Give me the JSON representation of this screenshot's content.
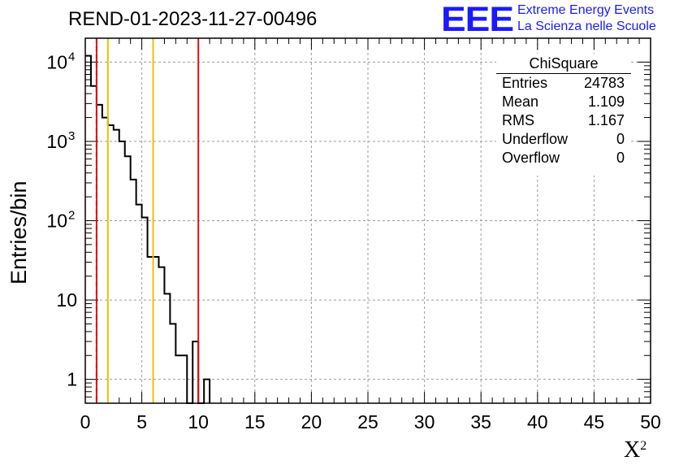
{
  "title": "REND-01-2023-11-27-00496",
  "logo": {
    "mark": "EEE",
    "line1": "Extreme Energy Events",
    "line2": "La Scienza nelle Scuole"
  },
  "colors": {
    "histogram": "#000000",
    "grid": "#9a9a9a",
    "mean_line_dashed": "#000000",
    "cut_line_red": "#dd1111",
    "cut_line_yellow": "#f0c000"
  },
  "stats": {
    "title": "ChiSquare",
    "rows": [
      {
        "label": "Entries",
        "value": "24783"
      },
      {
        "label": "Mean",
        "value": "1.109"
      },
      {
        "label": "RMS",
        "value": "1.167"
      },
      {
        "label": "Underflow",
        "value": "0"
      },
      {
        "label": "Overflow",
        "value": "0"
      }
    ]
  },
  "chart_data": {
    "type": "bar",
    "title": "REND-01-2023-11-27-00496",
    "xlabel": "X",
    "xlabel_superscript": "2",
    "ylabel": "Entries/bin",
    "xlim": [
      0,
      50
    ],
    "ylim": [
      0.5,
      20000
    ],
    "yscale": "log",
    "grid": true,
    "x_ticks": [
      "0",
      "5",
      "10",
      "15",
      "20",
      "25",
      "30",
      "35",
      "40",
      "45",
      "50"
    ],
    "y_ticks": [
      {
        "value": 1,
        "label": "1"
      },
      {
        "value": 10,
        "label": "10"
      },
      {
        "value": 100,
        "label": "10",
        "exp": "2"
      },
      {
        "value": 1000,
        "label": "10",
        "exp": "3"
      },
      {
        "value": 10000,
        "label": "10",
        "exp": "4"
      }
    ],
    "bin_width": 0.5,
    "bins": [
      {
        "x": 0.0,
        "y": 12000
      },
      {
        "x": 0.5,
        "y": 5000
      },
      {
        "x": 1.0,
        "y": 2900
      },
      {
        "x": 1.5,
        "y": 2000
      },
      {
        "x": 2.0,
        "y": 1600
      },
      {
        "x": 2.5,
        "y": 1400
      },
      {
        "x": 3.0,
        "y": 1000
      },
      {
        "x": 3.5,
        "y": 650
      },
      {
        "x": 4.0,
        "y": 330
      },
      {
        "x": 4.5,
        "y": 160
      },
      {
        "x": 5.0,
        "y": 110
      },
      {
        "x": 5.5,
        "y": 35
      },
      {
        "x": 6.0,
        "y": 35
      },
      {
        "x": 6.5,
        "y": 26
      },
      {
        "x": 7.0,
        "y": 12
      },
      {
        "x": 7.5,
        "y": 5
      },
      {
        "x": 8.0,
        "y": 2
      },
      {
        "x": 8.5,
        "y": 2
      },
      {
        "x": 9.0,
        "y": 0
      },
      {
        "x": 9.5,
        "y": 3
      },
      {
        "x": 10.0,
        "y": 0
      },
      {
        "x": 10.5,
        "y": 1
      }
    ],
    "vertical_lines": [
      {
        "x": 1.0,
        "color": "#000000",
        "style": "dashed"
      },
      {
        "x": 1.0,
        "color": "#dd1111",
        "style": "solid"
      },
      {
        "x": 2.0,
        "color": "#f0c000",
        "style": "solid"
      },
      {
        "x": 6.0,
        "color": "#f0c000",
        "style": "solid"
      },
      {
        "x": 10.0,
        "color": "#dd1111",
        "style": "solid"
      }
    ]
  }
}
